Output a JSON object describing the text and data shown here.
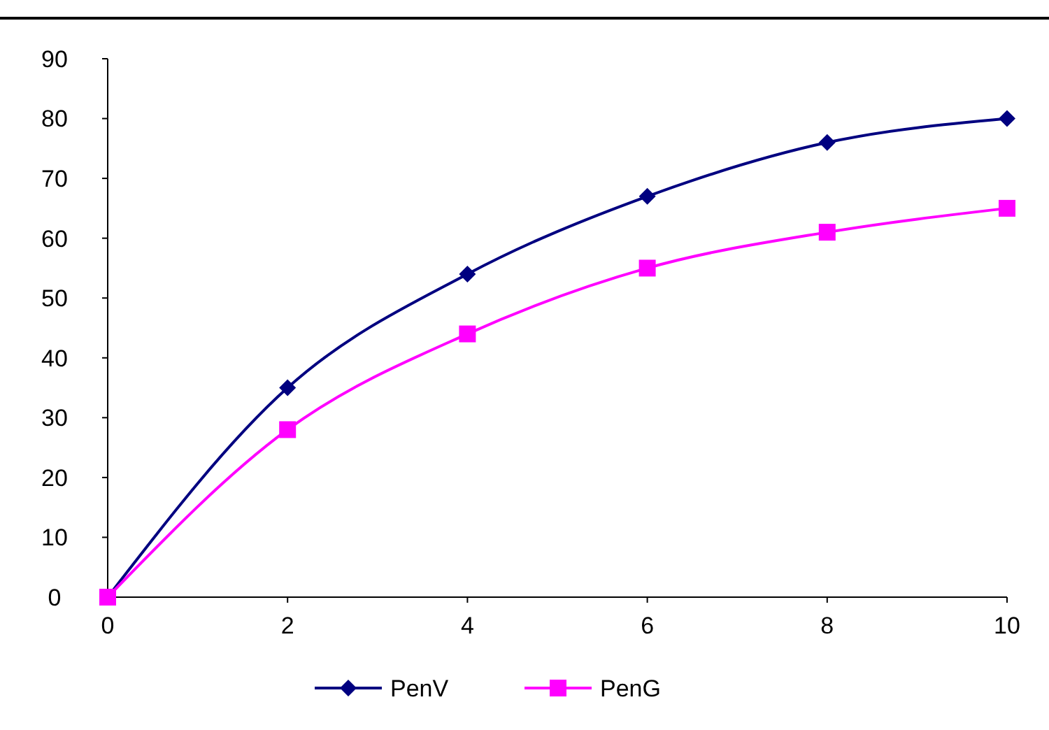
{
  "chart_data": {
    "type": "line",
    "x": [
      0,
      2,
      4,
      6,
      8,
      10
    ],
    "series": [
      {
        "name": "PenV",
        "color": "#000080",
        "marker": "diamond",
        "values": [
          0,
          35,
          54,
          67,
          76,
          80
        ]
      },
      {
        "name": "PenG",
        "color": "#ff00ff",
        "marker": "square",
        "values": [
          0,
          28,
          44,
          55,
          61,
          65
        ]
      }
    ],
    "xlim": [
      0,
      10
    ],
    "xticks": [
      0,
      2,
      4,
      6,
      8,
      10
    ],
    "ylim": [
      0,
      90
    ],
    "yticks": [
      0,
      10,
      20,
      30,
      40,
      50,
      60,
      70,
      80,
      90
    ],
    "grid": false,
    "legend": "bottom",
    "line_style": "solid"
  }
}
